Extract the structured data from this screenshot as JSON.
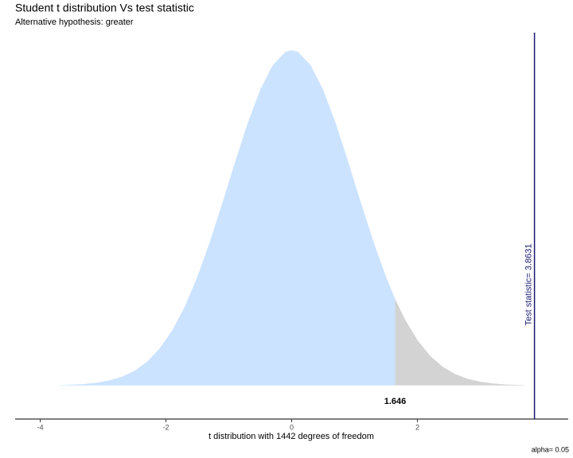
{
  "chart_data": {
    "type": "area",
    "title": "Student t distribution Vs test statistic",
    "subtitle": "Alternative hypothesis: greater",
    "x_label": "t distribution with 1442 degrees of freedom",
    "series": [
      {
        "color": "#cce3ff",
        "x": [
          -3.7,
          -3.5,
          -3.3,
          -3.1,
          -2.9,
          -2.7,
          -2.5,
          -2.3,
          -2.1,
          -1.9,
          -1.7,
          -1.5,
          -1.3,
          -1.1,
          -0.9,
          -0.7,
          -0.5,
          -0.3,
          -0.1,
          0,
          0.1,
          0.3,
          0.5,
          0.7,
          0.9,
          1.1,
          1.3,
          1.5,
          1.646
        ],
        "values": [
          0.0004,
          0.0009,
          0.0017,
          0.0033,
          0.006,
          0.0104,
          0.0175,
          0.0283,
          0.044,
          0.0656,
          0.0941,
          0.1295,
          0.1714,
          0.2179,
          0.2661,
          0.3123,
          0.3521,
          0.3814,
          0.397,
          0.399,
          0.397,
          0.3814,
          0.3521,
          0.3123,
          0.2661,
          0.2179,
          0.1714,
          0.1295,
          0.1029
        ]
      },
      {
        "color": "#d3d3d3",
        "x": [
          1.646,
          1.8,
          2.0,
          2.2,
          2.4,
          2.6,
          2.8,
          3.0,
          3.2,
          3.4,
          3.7
        ],
        "values": [
          0.1029,
          0.079,
          0.054,
          0.0355,
          0.0224,
          0.0136,
          0.0079,
          0.0044,
          0.0024,
          0.0012,
          0.0004
        ]
      }
    ],
    "critical_value": 1.646,
    "test_statistic": 3.8631,
    "test_statistic_label": "Test statistic= 3.8631",
    "test_statistic_color": "#191970",
    "alpha_label": "alpha= 0.05",
    "xlim": [
      -4.4,
      4.4
    ],
    "ylim": [
      -0.04,
      0.42
    ],
    "xticks": [
      -4,
      -2,
      0,
      2
    ]
  }
}
